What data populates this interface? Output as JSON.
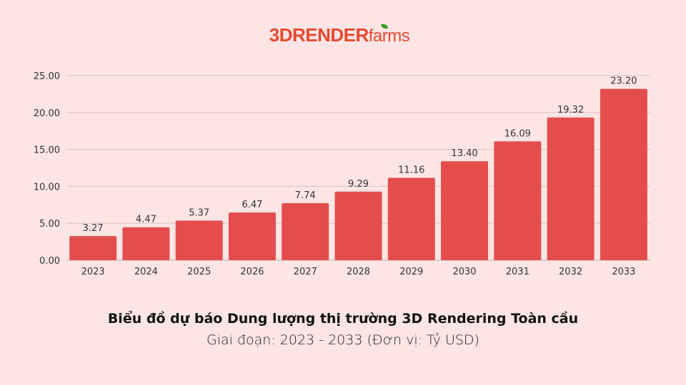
{
  "logo": {
    "main": "3DRENDER",
    "suffix": "farms"
  },
  "colors": {
    "bar": "#e54d4d",
    "background": "#fde5e5",
    "grid": "#d9c4c4",
    "logo": "#e8492f"
  },
  "chart_data": {
    "type": "bar",
    "title": "Biểu đồ dự báo Dung lượng thị trường 3D Rendering Toàn cầu",
    "subtitle": "Giai đoạn: 2023 - 2033 (Đơn vị: Tỷ USD)",
    "categories": [
      "2023",
      "2024",
      "2025",
      "2026",
      "2027",
      "2028",
      "2029",
      "2030",
      "2031",
      "2032",
      "2033"
    ],
    "values": [
      3.27,
      4.47,
      5.37,
      6.47,
      7.74,
      9.29,
      11.16,
      13.4,
      16.09,
      19.32,
      23.2
    ],
    "value_labels": [
      "3.27",
      "4.47",
      "5.37",
      "6.47",
      "7.74",
      "9.29",
      "11.16",
      "13.40",
      "16.09",
      "19.32",
      "23.20"
    ],
    "yticks": [
      "0.00",
      "5.00",
      "10.00",
      "15.00",
      "20.00",
      "25.00"
    ],
    "ylim": [
      0,
      25
    ],
    "grid": true
  }
}
